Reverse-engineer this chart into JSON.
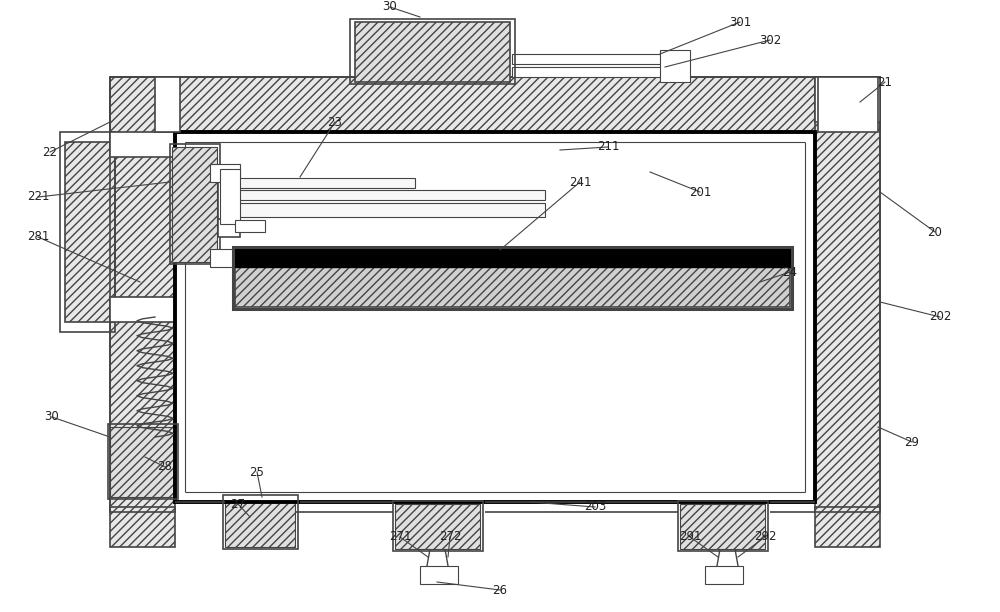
{
  "bg_color": "#ffffff",
  "line_color": "#444444",
  "label_color": "#222222",
  "fig_width": 10.0,
  "fig_height": 6.12,
  "dpi": 100
}
